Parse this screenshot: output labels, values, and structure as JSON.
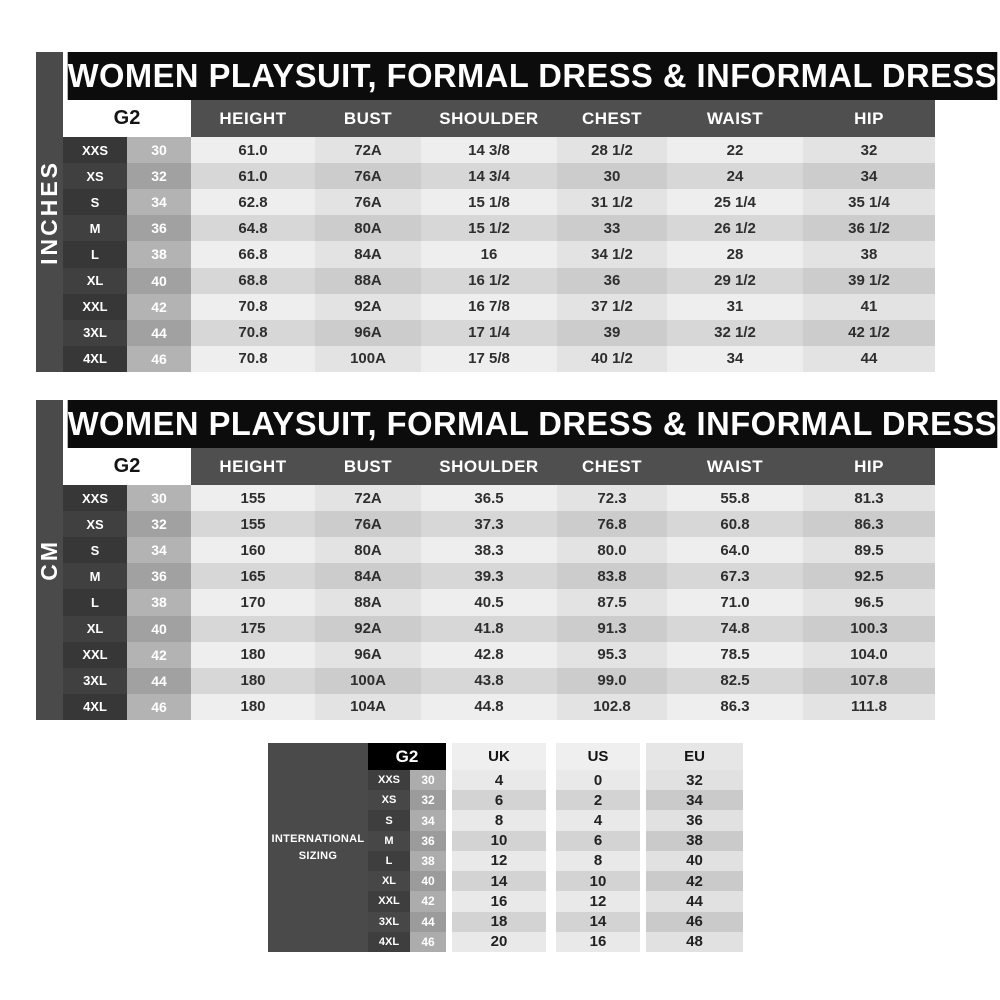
{
  "title": "WOMEN PLAYSUIT, FORMAL DRESS & INFORMAL DRESS",
  "colors": {
    "title_bar": "#0c0c0c",
    "column_header_bar": "#4f4f4f",
    "side_panel": "#4a4a4a",
    "size_name_column": "#373737",
    "size_number_column": "#b3b3b3",
    "row_light": "#eeeeee",
    "row_dark": "#d7d7d7"
  },
  "inches_table": {
    "side_label": "INCHES",
    "group_header": "G2",
    "columns": [
      "HEIGHT",
      "BUST",
      "SHOULDER",
      "CHEST",
      "WAIST",
      "HIP"
    ],
    "rows": [
      {
        "size": "XXS",
        "g2": "30",
        "values": [
          "61.0",
          "72A",
          "14 3/8",
          "28 1/2",
          "22",
          "32"
        ]
      },
      {
        "size": "XS",
        "g2": "32",
        "values": [
          "61.0",
          "76A",
          "14 3/4",
          "30",
          "24",
          "34"
        ]
      },
      {
        "size": "S",
        "g2": "34",
        "values": [
          "62.8",
          "76A",
          "15 1/8",
          "31 1/2",
          "25 1/4",
          "35 1/4"
        ]
      },
      {
        "size": "M",
        "g2": "36",
        "values": [
          "64.8",
          "80A",
          "15 1/2",
          "33",
          "26 1/2",
          "36 1/2"
        ]
      },
      {
        "size": "L",
        "g2": "38",
        "values": [
          "66.8",
          "84A",
          "16",
          "34 1/2",
          "28",
          "38"
        ]
      },
      {
        "size": "XL",
        "g2": "40",
        "values": [
          "68.8",
          "88A",
          "16 1/2",
          "36",
          "29 1/2",
          "39 1/2"
        ]
      },
      {
        "size": "XXL",
        "g2": "42",
        "values": [
          "70.8",
          "92A",
          "16 7/8",
          "37 1/2",
          "31",
          "41"
        ]
      },
      {
        "size": "3XL",
        "g2": "44",
        "values": [
          "70.8",
          "96A",
          "17 1/4",
          "39",
          "32 1/2",
          "42 1/2"
        ]
      },
      {
        "size": "4XL",
        "g2": "46",
        "values": [
          "70.8",
          "100A",
          "17 5/8",
          "40 1/2",
          "34",
          "44"
        ]
      }
    ]
  },
  "cm_table": {
    "side_label": "CM",
    "group_header": "G2",
    "columns": [
      "HEIGHT",
      "BUST",
      "SHOULDER",
      "CHEST",
      "WAIST",
      "HIP"
    ],
    "rows": [
      {
        "size": "XXS",
        "g2": "30",
        "values": [
          "155",
          "72A",
          "36.5",
          "72.3",
          "55.8",
          "81.3"
        ]
      },
      {
        "size": "XS",
        "g2": "32",
        "values": [
          "155",
          "76A",
          "37.3",
          "76.8",
          "60.8",
          "86.3"
        ]
      },
      {
        "size": "S",
        "g2": "34",
        "values": [
          "160",
          "80A",
          "38.3",
          "80.0",
          "64.0",
          "89.5"
        ]
      },
      {
        "size": "M",
        "g2": "36",
        "values": [
          "165",
          "84A",
          "39.3",
          "83.8",
          "67.3",
          "92.5"
        ]
      },
      {
        "size": "L",
        "g2": "38",
        "values": [
          "170",
          "88A",
          "40.5",
          "87.5",
          "71.0",
          "96.5"
        ]
      },
      {
        "size": "XL",
        "g2": "40",
        "values": [
          "175",
          "92A",
          "41.8",
          "91.3",
          "74.8",
          "100.3"
        ]
      },
      {
        "size": "XXL",
        "g2": "42",
        "values": [
          "180",
          "96A",
          "42.8",
          "95.3",
          "78.5",
          "104.0"
        ]
      },
      {
        "size": "3XL",
        "g2": "44",
        "values": [
          "180",
          "100A",
          "43.8",
          "99.0",
          "82.5",
          "107.8"
        ]
      },
      {
        "size": "4XL",
        "g2": "46",
        "values": [
          "180",
          "104A",
          "44.8",
          "102.8",
          "86.3",
          "111.8"
        ]
      }
    ]
  },
  "international_table": {
    "side_label": "INTERNATIONAL SIZING",
    "group_header": "G2",
    "columns": [
      "UK",
      "US",
      "EU"
    ],
    "rows": [
      {
        "size": "XXS",
        "g2": "30",
        "values": [
          "4",
          "0",
          "32"
        ]
      },
      {
        "size": "XS",
        "g2": "32",
        "values": [
          "6",
          "2",
          "34"
        ]
      },
      {
        "size": "S",
        "g2": "34",
        "values": [
          "8",
          "4",
          "36"
        ]
      },
      {
        "size": "M",
        "g2": "36",
        "values": [
          "10",
          "6",
          "38"
        ]
      },
      {
        "size": "L",
        "g2": "38",
        "values": [
          "12",
          "8",
          "40"
        ]
      },
      {
        "size": "XL",
        "g2": "40",
        "values": [
          "14",
          "10",
          "42"
        ]
      },
      {
        "size": "XXL",
        "g2": "42",
        "values": [
          "16",
          "12",
          "44"
        ]
      },
      {
        "size": "3XL",
        "g2": "44",
        "values": [
          "18",
          "14",
          "46"
        ]
      },
      {
        "size": "4XL",
        "g2": "46",
        "values": [
          "20",
          "16",
          "48"
        ]
      }
    ]
  }
}
